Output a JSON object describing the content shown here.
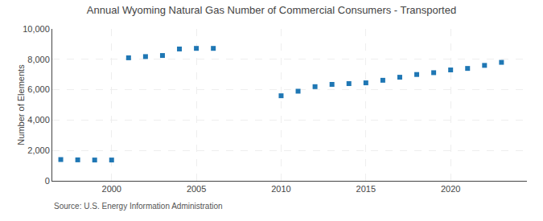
{
  "chart_data": {
    "type": "scatter",
    "title": "Annual Wyoming Natural Gas Number of Commercial Consumers - Transported",
    "y_label": "Number of Elements",
    "annotations": [
      "Source: U.S. Energy Information Administration"
    ],
    "x": [
      1997,
      1998,
      1999,
      2000,
      2001,
      2002,
      2003,
      2004,
      2005,
      2006,
      2010,
      2011,
      2012,
      2013,
      2014,
      2015,
      2016,
      2017,
      2018,
      2019,
      2020,
      2021,
      2022,
      2023
    ],
    "values": [
      1400,
      1380,
      1370,
      1370,
      8100,
      8180,
      8250,
      8680,
      8720,
      8720,
      5600,
      5900,
      6200,
      6350,
      6400,
      6450,
      6620,
      6820,
      7000,
      7120,
      7300,
      7400,
      7600,
      7800
    ],
    "marker": "square",
    "xlim": [
      1996.5,
      2024.5
    ],
    "xticks": [
      2000,
      2005,
      2010,
      2015,
      2020
    ],
    "ylim": [
      0,
      10000
    ],
    "yticks": [
      0,
      {
        "value": 2000,
        "label": "2,000"
      },
      {
        "value": 4000,
        "label": "4,000"
      },
      {
        "value": 6000,
        "label": "6,000"
      },
      {
        "value": 8000,
        "label": "8,000"
      },
      {
        "value": 10000,
        "label": "10,000"
      }
    ],
    "grid": true
  }
}
